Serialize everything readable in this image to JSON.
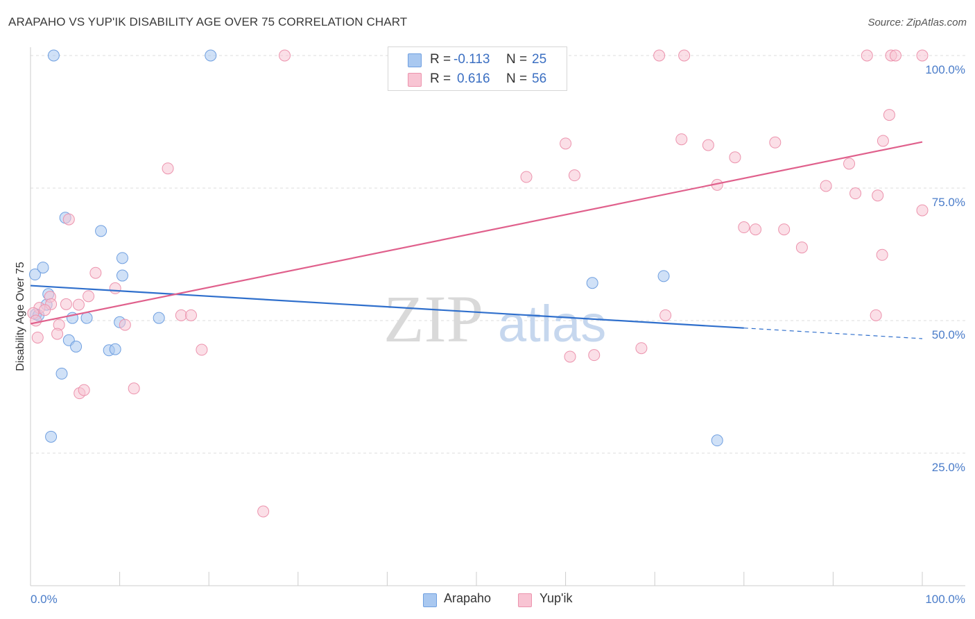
{
  "header": {
    "title": "ARAPAHO VS YUP'IK DISABILITY AGE OVER 75 CORRELATION CHART",
    "source": "Source: ZipAtlas.com"
  },
  "watermark": {
    "zip": "ZIP",
    "atlas": "atlas"
  },
  "legend": {
    "rows": [
      {
        "r_label": "R =",
        "r_value": "-0.113",
        "n_label": "N =",
        "n_value": "25",
        "color": "#a9c8f0",
        "stroke": "#6f9fe0"
      },
      {
        "r_label": "R =",
        "r_value": "0.616",
        "n_label": "N =",
        "n_value": "56",
        "color": "#f8c4d3",
        "stroke": "#ec93ad"
      }
    ]
  },
  "bottom_legend": {
    "items": [
      {
        "label": "Arapaho",
        "color": "#a9c8f0",
        "stroke": "#6f9fe0"
      },
      {
        "label": "Yup'ik",
        "color": "#f8c4d3",
        "stroke": "#ec93ad"
      }
    ]
  },
  "chart_data": {
    "type": "scatter",
    "title": "ARAPAHO VS YUP'IK DISABILITY AGE OVER 75 CORRELATION CHART",
    "xlabel": "",
    "ylabel": "Disability Age Over 75",
    "xlim": [
      0,
      100
    ],
    "ylim": [
      0,
      100
    ],
    "x_tick_labels": [
      {
        "value": 0,
        "label": "0.0%"
      },
      {
        "value": 100,
        "label": "100.0%"
      }
    ],
    "y_tick_labels": [
      {
        "value": 25,
        "label": "25.0%"
      },
      {
        "value": 50,
        "label": "50.0%"
      },
      {
        "value": 75,
        "label": "75.0%"
      },
      {
        "value": 100,
        "label": "100.0%"
      }
    ],
    "grid": true,
    "series": [
      {
        "name": "Arapaho",
        "color": "#a9c8f0",
        "stroke": "#6f9fe0",
        "line_color": "#2f6fcc",
        "trend": {
          "x0": 0,
          "y0": 56.6,
          "x1": 80,
          "y1": 48.6,
          "dash_to_x": 100,
          "dash_to_y": 46.6
        },
        "points": [
          [
            2.6,
            100
          ],
          [
            20.2,
            100
          ],
          [
            0.5,
            58.7
          ],
          [
            1.4,
            60.0
          ],
          [
            3.9,
            69.4
          ],
          [
            7.9,
            66.9
          ],
          [
            10.3,
            61.8
          ],
          [
            10.3,
            58.5
          ],
          [
            2.0,
            55.0
          ],
          [
            1.8,
            53.0
          ],
          [
            0.6,
            51.2
          ],
          [
            0.9,
            51.0
          ],
          [
            4.7,
            50.5
          ],
          [
            6.3,
            50.5
          ],
          [
            10.0,
            49.7
          ],
          [
            14.4,
            50.5
          ],
          [
            4.3,
            46.3
          ],
          [
            5.1,
            45.1
          ],
          [
            8.8,
            44.4
          ],
          [
            9.5,
            44.6
          ],
          [
            3.5,
            40.0
          ],
          [
            2.3,
            28.1
          ],
          [
            63.0,
            57.1
          ],
          [
            71.0,
            58.4
          ],
          [
            77.0,
            27.4
          ]
        ]
      },
      {
        "name": "Yup'ik",
        "color": "#f8c4d3",
        "stroke": "#ec93ad",
        "line_color": "#e0608c",
        "trend": {
          "x0": 0,
          "y0": 49.4,
          "x1": 100,
          "y1": 83.7
        },
        "points": [
          [
            28.5,
            100
          ],
          [
            70.5,
            100
          ],
          [
            73.3,
            100
          ],
          [
            93.8,
            100
          ],
          [
            96.5,
            100
          ],
          [
            97.0,
            100
          ],
          [
            100.0,
            100
          ],
          [
            96.3,
            88.8
          ],
          [
            60.0,
            83.4
          ],
          [
            73.0,
            84.2
          ],
          [
            76.0,
            83.1
          ],
          [
            79.0,
            80.8
          ],
          [
            83.5,
            83.6
          ],
          [
            95.6,
            83.9
          ],
          [
            91.8,
            79.6
          ],
          [
            15.4,
            78.7
          ],
          [
            55.6,
            77.1
          ],
          [
            61.0,
            77.4
          ],
          [
            77.0,
            75.6
          ],
          [
            89.2,
            75.4
          ],
          [
            92.5,
            74.0
          ],
          [
            95.0,
            73.6
          ],
          [
            100.0,
            70.8
          ],
          [
            4.3,
            69.1
          ],
          [
            80.0,
            67.6
          ],
          [
            81.3,
            67.2
          ],
          [
            84.5,
            67.2
          ],
          [
            86.5,
            63.8
          ],
          [
            95.5,
            62.4
          ],
          [
            7.3,
            59.0
          ],
          [
            9.5,
            56.1
          ],
          [
            2.2,
            54.5
          ],
          [
            6.5,
            54.6
          ],
          [
            4.0,
            53.1
          ],
          [
            5.4,
            53.0
          ],
          [
            2.3,
            53.1
          ],
          [
            1.0,
            52.4
          ],
          [
            1.6,
            52.0
          ],
          [
            0.3,
            51.4
          ],
          [
            0.6,
            50.0
          ],
          [
            3.2,
            49.2
          ],
          [
            10.6,
            49.2
          ],
          [
            16.9,
            51.0
          ],
          [
            18.0,
            51.0
          ],
          [
            3.0,
            47.5
          ],
          [
            0.8,
            46.8
          ],
          [
            19.2,
            44.5
          ],
          [
            60.5,
            43.2
          ],
          [
            63.2,
            43.5
          ],
          [
            68.5,
            44.8
          ],
          [
            71.2,
            51.0
          ],
          [
            94.8,
            51.0
          ],
          [
            5.5,
            36.3
          ],
          [
            6.0,
            36.9
          ],
          [
            11.6,
            37.2
          ],
          [
            26.1,
            14.0
          ]
        ]
      }
    ]
  }
}
